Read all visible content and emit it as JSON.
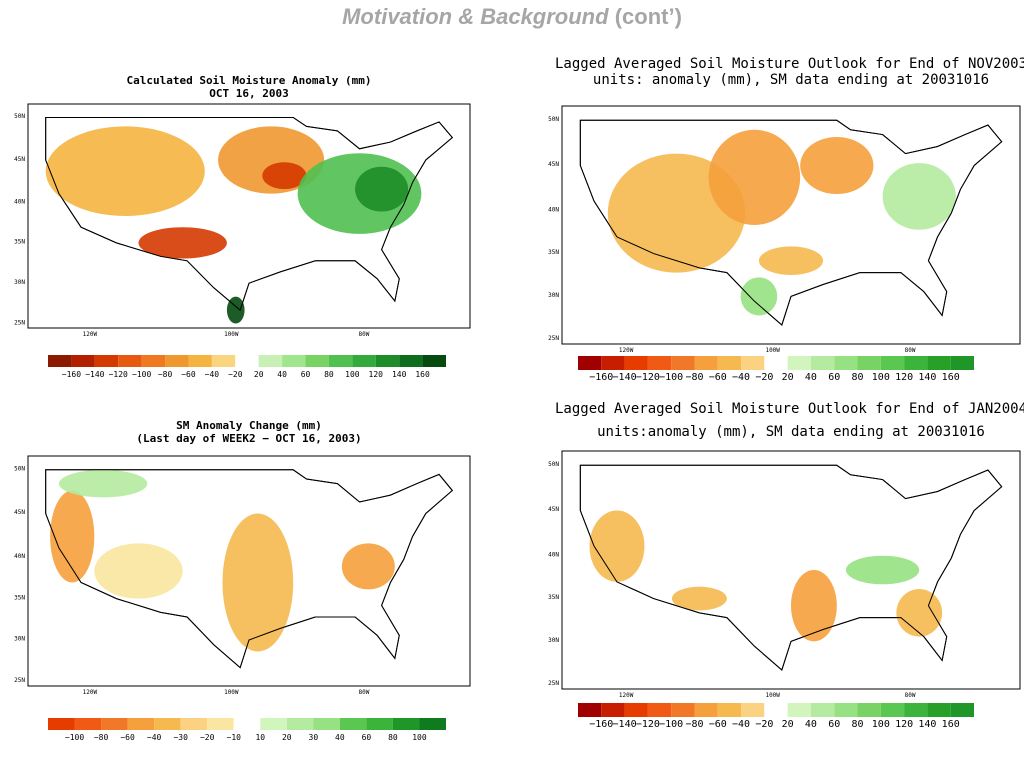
{
  "slide": {
    "title": "Motivation & Background",
    "title_suffix": "(cont’)"
  },
  "panels": [
    {
      "title": [
        "Calculated Soil Moisture Anomaly (mm)",
        "OCT 16, 2003"
      ],
      "lat_labels": [
        "50N",
        "45N",
        "40N",
        "35N",
        "30N",
        "25N"
      ],
      "lon_labels": [
        "120W",
        "100W",
        "80W"
      ],
      "colorbar": {
        "labels": [
          "−160",
          "−140",
          "−120",
          "−100",
          "−80",
          "−60",
          "−40",
          "−20",
          "20",
          "40",
          "60",
          "80",
          "100",
          "120",
          "140",
          "160"
        ],
        "colors": [
          "#8b1a00",
          "#b22000",
          "#d43a00",
          "#e65a10",
          "#f07820",
          "#f09830",
          "#f5b440",
          "#fad580",
          "#ffffff",
          "#c8f0b4",
          "#a0e68c",
          "#78d264",
          "#50c050",
          "#32aa3c",
          "#1e8c28",
          "#0f6e1e",
          "#064a10"
        ]
      }
    },
    {
      "title": [
        "Lagged Averaged Soil Moisture Outlook for End of NOV2003",
        "units: anomaly (mm), SM data ending at 20031016"
      ],
      "lat_labels": [
        "50N",
        "45N",
        "40N",
        "35N",
        "30N",
        "25N"
      ],
      "lon_labels": [
        "120W",
        "100W",
        "80W"
      ],
      "colorbar": {
        "labels": [
          "−160",
          "−140",
          "−120",
          "−100",
          "−80",
          "−60",
          "−40",
          "−20",
          "20",
          "40",
          "60",
          "80",
          "100",
          "120",
          "140",
          "160"
        ],
        "colors": [
          "#a00000",
          "#c81e00",
          "#e63c00",
          "#f05a14",
          "#f07828",
          "#f5a03c",
          "#f5b950",
          "#fad282",
          "#ffffff",
          "#d2f5be",
          "#b4eba0",
          "#96e182",
          "#78d264",
          "#5ac850",
          "#3cb43c",
          "#28a028",
          "#1e9628"
        ]
      }
    },
    {
      "title": [
        "SM Anomaly Change (mm)",
        "(Last day of WEEK2 − OCT 16, 2003)"
      ],
      "lat_labels": [
        "50N",
        "45N",
        "40N",
        "35N",
        "30N",
        "25N"
      ],
      "lon_labels": [
        "120W",
        "100W",
        "80W"
      ],
      "colorbar": {
        "labels": [
          "−100",
          "−80",
          "−60",
          "−40",
          "−30",
          "−20",
          "−10",
          "10",
          "20",
          "30",
          "40",
          "60",
          "80",
          "100"
        ],
        "colors": [
          "#e63c00",
          "#f05a14",
          "#f07828",
          "#f5a03c",
          "#f5b950",
          "#fad282",
          "#fae6a0",
          "#ffffff",
          "#d2f5be",
          "#b4eba0",
          "#96e182",
          "#5ac850",
          "#3cb43c",
          "#1e9628",
          "#0f7a1e"
        ]
      }
    },
    {
      "title": [
        "Lagged Averaged Soil Moisture Outlook for End of JAN2004",
        "units:anomaly (mm), SM data ending at 20031016"
      ],
      "lat_labels": [
        "50N",
        "45N",
        "40N",
        "35N",
        "30N",
        "25N"
      ],
      "lon_labels": [
        "120W",
        "100W",
        "80W"
      ],
      "colorbar": {
        "labels": [
          "−160",
          "−140",
          "−120",
          "−100",
          "−80",
          "−60",
          "−40",
          "−20",
          "20",
          "40",
          "60",
          "80",
          "100",
          "120",
          "140",
          "160"
        ],
        "colors": [
          "#a00000",
          "#c81e00",
          "#e63c00",
          "#f05a14",
          "#f07828",
          "#f5a03c",
          "#f5b950",
          "#fad282",
          "#ffffff",
          "#d2f5be",
          "#b4eba0",
          "#96e182",
          "#78d264",
          "#5ac850",
          "#3cb43c",
          "#28a028",
          "#1e9628"
        ]
      }
    }
  ]
}
